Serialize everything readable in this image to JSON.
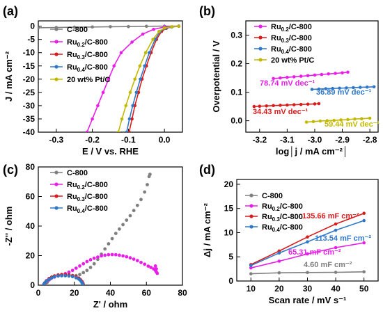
{
  "colors": {
    "c800": "#7f7f7f",
    "ru02": "#e81ee8",
    "ru03": "#d81b1b",
    "ru04": "#2f78c8",
    "ptc": "#c2b800"
  },
  "chart_data": [
    {
      "panel": "(a)",
      "type": "line",
      "xlabel": "E / V vs. RHE",
      "ylabel": "J / mA cm⁻²",
      "xlim": [
        -0.35,
        0.05
      ],
      "ylim": [
        -40,
        2
      ],
      "xticks": [
        "-0.3",
        "-0.2",
        "-0.1",
        "0.0"
      ],
      "yticks": [
        "0",
        "-5",
        "-10",
        "-15",
        "-20",
        "-25",
        "-30",
        "-35",
        "-40"
      ],
      "legend_position": "top-left",
      "series": [
        {
          "name": "C-800",
          "color": "#7f7f7f",
          "points": [
            [
              -0.35,
              -0.6
            ],
            [
              -0.3,
              -0.5
            ],
            [
              -0.25,
              -0.4
            ],
            [
              -0.2,
              -0.3
            ],
            [
              -0.15,
              -0.2
            ],
            [
              -0.1,
              -0.15
            ],
            [
              -0.05,
              -0.05
            ],
            [
              0.0,
              0.0
            ],
            [
              0.04,
              0.0
            ]
          ]
        },
        {
          "name": "Ru0.2/C-800",
          "color": "#e81ee8",
          "points": [
            [
              -0.215,
              -40
            ],
            [
              -0.2,
              -35
            ],
            [
              -0.185,
              -30
            ],
            [
              -0.17,
              -25
            ],
            [
              -0.155,
              -20
            ],
            [
              -0.14,
              -15
            ],
            [
              -0.12,
              -10
            ],
            [
              -0.09,
              -6
            ],
            [
              -0.06,
              -3
            ],
            [
              -0.03,
              -1.2
            ],
            [
              0.0,
              -0.3
            ],
            [
              0.04,
              0.0
            ]
          ]
        },
        {
          "name": "Ru0.3/C-800",
          "color": "#d81b1b",
          "points": [
            [
              -0.098,
              -40
            ],
            [
              -0.09,
              -35
            ],
            [
              -0.082,
              -30
            ],
            [
              -0.072,
              -25
            ],
            [
              -0.062,
              -20
            ],
            [
              -0.05,
              -15
            ],
            [
              -0.037,
              -10
            ],
            [
              -0.022,
              -5
            ],
            [
              -0.008,
              -2
            ],
            [
              0.005,
              -0.8
            ],
            [
              0.02,
              -0.3
            ],
            [
              0.04,
              0.0
            ]
          ]
        },
        {
          "name": "Ru0.4/C-800",
          "color": "#2f78c8",
          "points": [
            [
              -0.105,
              -40
            ],
            [
              -0.097,
              -35
            ],
            [
              -0.088,
              -30
            ],
            [
              -0.078,
              -25
            ],
            [
              -0.067,
              -20
            ],
            [
              -0.055,
              -15
            ],
            [
              -0.042,
              -10
            ],
            [
              -0.026,
              -5
            ],
            [
              -0.012,
              -2
            ],
            [
              0.002,
              -0.8
            ],
            [
              0.02,
              -0.3
            ],
            [
              0.04,
              0.0
            ]
          ]
        },
        {
          "name": "20 wt% Pt/C",
          "color": "#c2b800",
          "points": [
            [
              -0.128,
              -40
            ],
            [
              -0.118,
              -35
            ],
            [
              -0.107,
              -30
            ],
            [
              -0.095,
              -25
            ],
            [
              -0.082,
              -20
            ],
            [
              -0.068,
              -15
            ],
            [
              -0.052,
              -10
            ],
            [
              -0.032,
              -5
            ],
            [
              -0.015,
              -2
            ],
            [
              0.0,
              -0.7
            ],
            [
              0.02,
              -0.2
            ],
            [
              0.04,
              0.0
            ]
          ]
        }
      ]
    },
    {
      "panel": "(b)",
      "type": "line",
      "xlabel": "log│j / mA cm⁻²│",
      "ylabel": "Overpotential / V",
      "xlim": [
        -3.25,
        -2.77
      ],
      "ylim": [
        -0.04,
        0.35
      ],
      "xticks": [
        "-3.2",
        "-3.1",
        "-3.0",
        "-2.9",
        "-2.8"
      ],
      "yticks": [
        "0.0",
        "0.1",
        "0.2",
        "0.3"
      ],
      "legend_position": "top-left",
      "series": [
        {
          "name": "Ru0.2/C-800",
          "color": "#e81ee8",
          "slope_label": "78.74 mV dec⁻¹",
          "points": [
            [
              -3.15,
              0.148
            ],
            [
              -3.125,
              0.15
            ],
            [
              -3.1,
              0.152
            ],
            [
              -3.075,
              0.154
            ],
            [
              -3.05,
              0.156
            ],
            [
              -3.025,
              0.158
            ],
            [
              -3.0,
              0.16
            ],
            [
              -2.975,
              0.162
            ],
            [
              -2.95,
              0.164
            ],
            [
              -2.925,
              0.166
            ],
            [
              -2.9,
              0.168
            ],
            [
              -2.88,
              0.17
            ]
          ]
        },
        {
          "name": "Ru0.3/C-800",
          "color": "#d81b1b",
          "slope_label": "34.43 mV dec⁻¹",
          "points": [
            [
              -3.22,
              0.05
            ],
            [
              -3.2,
              0.051
            ],
            [
              -3.175,
              0.052
            ],
            [
              -3.15,
              0.053
            ],
            [
              -3.125,
              0.054
            ],
            [
              -3.1,
              0.055
            ],
            [
              -3.075,
              0.056
            ],
            [
              -3.05,
              0.057
            ],
            [
              -3.025,
              0.058
            ],
            [
              -3.0,
              0.059
            ],
            [
              -2.985,
              0.06
            ]
          ]
        },
        {
          "name": "Ru0.4/C-800",
          "color": "#2f78c8",
          "slope_label": "36.89 mV dec⁻¹",
          "points": [
            [
              -3.01,
              0.11
            ],
            [
              -2.985,
              0.111
            ],
            [
              -2.96,
              0.112
            ],
            [
              -2.935,
              0.113
            ],
            [
              -2.91,
              0.114
            ],
            [
              -2.885,
              0.115
            ],
            [
              -2.86,
              0.116
            ],
            [
              -2.835,
              0.117
            ],
            [
              -2.81,
              0.118
            ],
            [
              -2.785,
              0.119
            ]
          ]
        },
        {
          "name": "20 wt% Pt/C",
          "color": "#c2b800",
          "slope_label": "59.44 mV dec⁻¹",
          "points": [
            [
              -3.03,
              -0.005
            ],
            [
              -3.005,
              -0.003
            ],
            [
              -2.98,
              -0.001
            ],
            [
              -2.955,
              0.0
            ],
            [
              -2.93,
              0.001
            ],
            [
              -2.905,
              0.003
            ],
            [
              -2.88,
              0.004
            ],
            [
              -2.855,
              0.006
            ],
            [
              -2.83,
              0.007
            ],
            [
              -2.8,
              0.009
            ]
          ]
        }
      ]
    },
    {
      "panel": "(c)",
      "type": "scatter",
      "xlabel": "Z' / ohm",
      "ylabel": "-Z'' / ohm",
      "xlim": [
        0,
        80
      ],
      "ylim": [
        0,
        80
      ],
      "xticks": [
        "0",
        "20",
        "40",
        "60",
        "80"
      ],
      "yticks": [
        "0",
        "20",
        "40",
        "60",
        "80"
      ],
      "legend_position": "top-left",
      "series": [
        {
          "name": "C-800",
          "color": "#7f7f7f",
          "points": [
            [
              4,
              0.5
            ],
            [
              5,
              2
            ],
            [
              6,
              3.5
            ],
            [
              7,
              4.8
            ],
            [
              9,
              5.8
            ],
            [
              11,
              6.3
            ],
            [
              13,
              6.5
            ],
            [
              15,
              6.5
            ],
            [
              17,
              6.4
            ],
            [
              19,
              6.3
            ],
            [
              21,
              6.5
            ],
            [
              23,
              7.2
            ],
            [
              25,
              8.5
            ],
            [
              27,
              10
            ],
            [
              29,
              12
            ],
            [
              31,
              14.5
            ],
            [
              33,
              17.5
            ],
            [
              35,
              21
            ],
            [
              37,
              24.5
            ],
            [
              39,
              28
            ],
            [
              41,
              31.5
            ],
            [
              43,
              35
            ],
            [
              45,
              38
            ],
            [
              47,
              41
            ],
            [
              49,
              44
            ],
            [
              51,
              47
            ],
            [
              53,
              50.5
            ],
            [
              55,
              54
            ],
            [
              57,
              58
            ],
            [
              59,
              63
            ],
            [
              60.5,
              68
            ],
            [
              61.5,
              73.5
            ],
            [
              62,
              75
            ]
          ]
        },
        {
          "name": "Ru0.2/C-800",
          "color": "#e81ee8",
          "points": [
            [
              3,
              0.5
            ],
            [
              4,
              2
            ],
            [
              5.5,
              3.5
            ],
            [
              7,
              4.5
            ],
            [
              9,
              5.5
            ],
            [
              11,
              6.3
            ],
            [
              13,
              7
            ],
            [
              15,
              7.8
            ],
            [
              17,
              8.8
            ],
            [
              19,
              10
            ],
            [
              21,
              11.5
            ],
            [
              23,
              13
            ],
            [
              25,
              14.5
            ],
            [
              27,
              16
            ],
            [
              29,
              17.2
            ],
            [
              31,
              18.2
            ],
            [
              33,
              19
            ],
            [
              35,
              19.8
            ],
            [
              37,
              20.3
            ],
            [
              39,
              20.6
            ],
            [
              41,
              20.7
            ],
            [
              43,
              20.6
            ],
            [
              45,
              20.3
            ],
            [
              47,
              19.8
            ],
            [
              49,
              19.2
            ],
            [
              51,
              18.5
            ],
            [
              53,
              17.6
            ],
            [
              55,
              16.6
            ],
            [
              57,
              15.4
            ],
            [
              59,
              14.2
            ],
            [
              61,
              12.9
            ],
            [
              62.5,
              12
            ],
            [
              64,
              11
            ],
            [
              65,
              10
            ],
            [
              65.5,
              9
            ],
            [
              66,
              8
            ],
            [
              65.5,
              11
            ],
            [
              65,
              13
            ]
          ]
        },
        {
          "name": "Ru0.3/C-800",
          "color": "#d81b1b",
          "points": [
            [
              3,
              0.3
            ],
            [
              3.5,
              1.5
            ],
            [
              4.5,
              3
            ],
            [
              6,
              4.5
            ],
            [
              7.5,
              5.5
            ],
            [
              9,
              6.3
            ],
            [
              11,
              6.9
            ],
            [
              13,
              7.2
            ],
            [
              15,
              7.2
            ],
            [
              17,
              7
            ],
            [
              19,
              6.5
            ],
            [
              21,
              5.7
            ],
            [
              22.5,
              4.8
            ],
            [
              23.5,
              3.6
            ],
            [
              24.3,
              2.4
            ],
            [
              24.8,
              1.2
            ],
            [
              25,
              0.3
            ]
          ]
        },
        {
          "name": "Ru0.4/C-800",
          "color": "#2f78c8",
          "points": [
            [
              3,
              0.3
            ],
            [
              3.5,
              1.4
            ],
            [
              4.5,
              2.8
            ],
            [
              6,
              4
            ],
            [
              7.5,
              5
            ],
            [
              9,
              5.7
            ],
            [
              11,
              6.2
            ],
            [
              13,
              6.4
            ],
            [
              15,
              6.4
            ],
            [
              17,
              6.2
            ],
            [
              19,
              5.8
            ],
            [
              21,
              5
            ],
            [
              22.5,
              4.1
            ],
            [
              23.5,
              3
            ],
            [
              24.2,
              1.8
            ],
            [
              24.6,
              0.8
            ],
            [
              24.8,
              0.2
            ]
          ]
        }
      ]
    },
    {
      "panel": "(d)",
      "type": "line",
      "xlabel": "Scan rate / mV s⁻¹",
      "ylabel": "Δj / mA cm⁻²",
      "xlim": [
        5,
        55
      ],
      "ylim": [
        0,
        21
      ],
      "xticks": [
        "10",
        "20",
        "30",
        "40",
        "50"
      ],
      "yticks": [
        "0",
        "5",
        "10",
        "15",
        "20"
      ],
      "legend_position": "top-left",
      "series": [
        {
          "name": "C-800",
          "color": "#7f7f7f",
          "slope_label": "4.60 mF cm⁻²",
          "points": [
            [
              10,
              1.5
            ],
            [
              20,
              1.7
            ],
            [
              30,
              1.75
            ],
            [
              40,
              1.8
            ],
            [
              50,
              1.9
            ]
          ]
        },
        {
          "name": "Ru0.2/C-800",
          "color": "#e81ee8",
          "slope_label": "65.31 mF cm⁻²",
          "points": [
            [
              10,
              2.7
            ],
            [
              20,
              4.1
            ],
            [
              30,
              5.6
            ],
            [
              40,
              6.9
            ],
            [
              50,
              7.9
            ]
          ]
        },
        {
          "name": "Ru0.3/C-800",
          "color": "#d81b1b",
          "slope_label": "135.66 mF cm⁻²",
          "points": [
            [
              10,
              3.4
            ],
            [
              20,
              6.2
            ],
            [
              30,
              9.1
            ],
            [
              40,
              11.8
            ],
            [
              50,
              14.0
            ]
          ]
        },
        {
          "name": "Ru0.4/C-800",
          "color": "#2f78c8",
          "slope_label": "113.54 mF cm⁻²",
          "points": [
            [
              10,
              3.2
            ],
            [
              20,
              5.8
            ],
            [
              30,
              8.1
            ],
            [
              40,
              10.5
            ],
            [
              50,
              12.5
            ]
          ]
        }
      ]
    }
  ]
}
